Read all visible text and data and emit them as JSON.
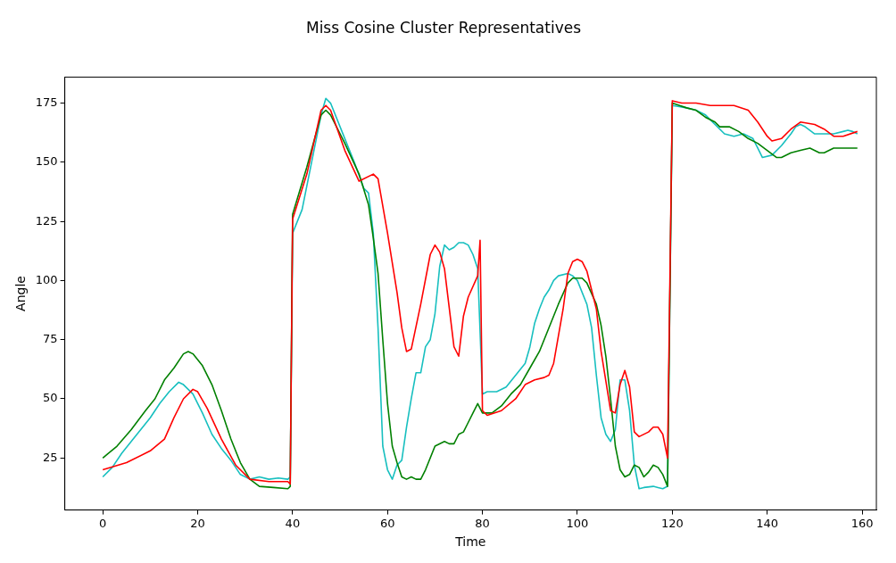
{
  "chart_data": {
    "type": "line",
    "title": "Miss Cosine Cluster Representatives",
    "xlabel": "Time",
    "ylabel": "Angle",
    "xlim": [
      -8,
      163
    ],
    "ylim": [
      3,
      186
    ],
    "xticks": [
      0,
      20,
      40,
      60,
      80,
      100,
      120,
      140,
      160
    ],
    "yticks": [
      25,
      50,
      75,
      100,
      125,
      150,
      175
    ],
    "grid": false,
    "legend": false,
    "marker": "none",
    "line_style": "solid",
    "series": [
      {
        "color": "#ff0000",
        "x": [
          0,
          5,
          10,
          13,
          15,
          17,
          19,
          20,
          22,
          25,
          28,
          31,
          35,
          39,
          39.5,
          40,
          43,
          46,
          47,
          48,
          51,
          54,
          57,
          58,
          60,
          62,
          63,
          64,
          65,
          67,
          69,
          70,
          71,
          72,
          74,
          75,
          76,
          77,
          79,
          79.5,
          80,
          81,
          84,
          87,
          89,
          91,
          93,
          94,
          95,
          97,
          98,
          99,
          100,
          101,
          102,
          104,
          105,
          107,
          108,
          109,
          110,
          111,
          112,
          113,
          115,
          116,
          117,
          118,
          119,
          120,
          122,
          125,
          128,
          130,
          133,
          136,
          138,
          140,
          141,
          143,
          145,
          147,
          150,
          152,
          154,
          156,
          159
        ],
        "values": [
          20,
          23,
          28,
          33,
          42,
          50,
          54,
          53,
          46,
          33,
          22,
          16,
          15,
          15,
          14,
          126,
          145,
          172,
          174,
          172,
          155,
          142,
          145,
          143,
          120,
          95,
          80,
          70,
          71,
          90,
          111,
          115,
          112,
          105,
          72,
          68,
          85,
          93,
          102,
          117,
          45,
          43,
          45,
          50,
          56,
          58,
          59,
          60,
          65,
          88,
          103,
          108,
          109,
          108,
          104,
          88,
          70,
          45,
          44,
          56,
          62,
          55,
          36,
          34,
          36,
          38,
          38,
          35,
          25,
          176,
          175,
          175,
          174,
          174,
          174,
          172,
          167,
          161,
          159,
          160,
          164,
          167,
          166,
          164,
          161,
          161,
          163
        ]
      },
      {
        "color": "#008000",
        "x": [
          0,
          3,
          6,
          9,
          11,
          13,
          15,
          17,
          18,
          19,
          21,
          23,
          25,
          27,
          29,
          31,
          33,
          36,
          39,
          39.5,
          40,
          43,
          46,
          47,
          48,
          51,
          54,
          56,
          57,
          58,
          59,
          60,
          61,
          62,
          63,
          64,
          65,
          66,
          67,
          68,
          70,
          72,
          73,
          74,
          75,
          76,
          77,
          78,
          79,
          80,
          82,
          84,
          86,
          88,
          90,
          92,
          94,
          96,
          98,
          99,
          101,
          102,
          104,
          105,
          106,
          107,
          108,
          109,
          110,
          111,
          112,
          113,
          114,
          115,
          116,
          117,
          118,
          119,
          120,
          123,
          125,
          127,
          129,
          130,
          132,
          134,
          136,
          138,
          140,
          142,
          143,
          145,
          147,
          149,
          151,
          152,
          154,
          156,
          159
        ],
        "values": [
          25,
          30,
          37,
          45,
          50,
          58,
          63,
          69,
          70,
          69,
          64,
          56,
          45,
          33,
          23,
          16,
          13,
          12.5,
          12,
          13,
          128,
          148,
          170,
          172,
          170,
          158,
          145,
          132,
          118,
          103,
          75,
          48,
          30,
          23,
          17,
          16,
          17,
          16,
          16,
          20,
          30,
          32,
          31,
          31,
          35,
          36,
          40,
          44,
          48,
          44,
          44,
          47,
          52,
          56,
          63,
          70,
          80,
          90,
          99,
          101,
          101,
          99,
          90,
          81,
          68,
          50,
          30,
          20,
          17,
          18,
          22,
          21,
          17,
          19,
          22,
          21,
          18,
          13,
          175,
          173,
          172,
          169,
          167,
          165,
          165,
          163,
          160,
          158,
          155,
          152,
          152,
          154,
          155,
          156,
          154,
          154,
          156,
          156,
          156
        ]
      },
      {
        "color": "#17bfbf",
        "x": [
          0,
          2,
          4,
          6,
          8,
          10,
          12,
          14,
          16,
          17,
          19,
          21,
          23,
          25,
          27,
          29,
          31,
          33,
          35,
          37,
          39,
          39.5,
          40,
          42,
          44,
          46,
          47,
          48,
          51,
          53,
          55,
          56,
          57,
          58,
          59,
          60,
          61,
          62,
          63,
          64,
          65,
          66,
          67,
          68,
          69,
          70,
          71,
          72,
          73,
          74,
          75,
          76,
          77,
          78,
          79,
          80,
          81,
          83,
          85,
          87,
          89,
          90,
          91,
          92,
          93,
          94,
          95,
          96,
          98,
          99,
          100,
          102,
          103,
          104,
          105,
          106,
          107,
          108,
          109,
          110,
          111,
          112,
          113,
          114,
          116,
          117,
          118,
          119,
          120,
          123,
          125,
          127,
          129,
          131,
          133,
          135,
          137,
          138,
          139,
          141,
          143,
          145,
          146,
          147,
          148,
          150,
          152,
          154,
          156,
          157,
          158,
          159
        ],
        "values": [
          17,
          21,
          27,
          32,
          37,
          42,
          48,
          53,
          57,
          56,
          52,
          44,
          35,
          29,
          24,
          18,
          16,
          17,
          16,
          16.5,
          16,
          17,
          120,
          130,
          150,
          170,
          177,
          175,
          160,
          150,
          139,
          137,
          120,
          80,
          30,
          20,
          16,
          22,
          24,
          38,
          50,
          61,
          61,
          72,
          75,
          86,
          106,
          115,
          113,
          114,
          116,
          116,
          115,
          111,
          105,
          52,
          53,
          53,
          55,
          60,
          65,
          72,
          82,
          88,
          93,
          96,
          100,
          102,
          103,
          102,
          100,
          90,
          80,
          60,
          42,
          35,
          32,
          37,
          58,
          58,
          45,
          22,
          12,
          12.5,
          13,
          12.5,
          12,
          13,
          174,
          173,
          172,
          170,
          166,
          162,
          161,
          162,
          160,
          156,
          152,
          153,
          157,
          162,
          165,
          166,
          165,
          162,
          162,
          162,
          163,
          163.5,
          163,
          162
        ]
      }
    ]
  }
}
